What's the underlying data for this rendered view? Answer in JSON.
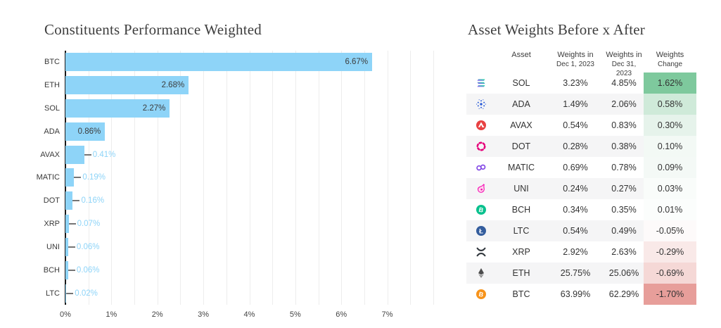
{
  "chart_data": {
    "type": "bar",
    "orientation": "horizontal",
    "title": "Constituents Performance Weighted",
    "categories": [
      "BTC",
      "ETH",
      "SOL",
      "ADA",
      "AVAX",
      "MATIC",
      "DOT",
      "XRP",
      "UNI",
      "BCH",
      "LTC"
    ],
    "values": [
      6.67,
      2.68,
      2.27,
      0.86,
      0.41,
      0.19,
      0.16,
      0.07,
      0.06,
      0.06,
      0.02
    ],
    "value_labels": [
      "6.67%",
      "2.68%",
      "2.27%",
      "0.86%",
      "0.41%",
      "0.19%",
      "0.16%",
      "0.07%",
      "0.06%",
      "0.06%",
      "0.02%"
    ],
    "xlabel": "",
    "ylabel": "",
    "xlim": [
      0,
      8
    ],
    "x_ticks": [
      "0%",
      "1%",
      "2%",
      "3%",
      "4%",
      "5%",
      "6%",
      "7%"
    ],
    "grid": "vertical minor gridlines every 0.5%",
    "legend": "none",
    "bar_color": "#8ed4f8",
    "inside_label_color": "#3c3c3c",
    "outside_label_color": "#8ed4f8"
  },
  "table": {
    "title": "Asset Weights Before x After",
    "columns": [
      {
        "line1": "Asset",
        "line2": ""
      },
      {
        "line1": "Weights in",
        "line2": "Dec 1, 2023"
      },
      {
        "line1": "Weights in",
        "line2": "Dec 31, 2023"
      },
      {
        "line1": "Weights",
        "line2": "Change"
      }
    ],
    "rows": [
      {
        "icon": "sol-icon",
        "asset": "SOL",
        "w1": "3.23%",
        "w2": "4.85%",
        "change": "1.62%",
        "change_bg": "#7ec99d"
      },
      {
        "icon": "ada-icon",
        "asset": "ADA",
        "w1": "1.49%",
        "w2": "2.06%",
        "change": "0.58%",
        "change_bg": "#cfead9"
      },
      {
        "icon": "avax-icon",
        "asset": "AVAX",
        "w1": "0.54%",
        "w2": "0.83%",
        "change": "0.30%",
        "change_bg": "#e6f3eb"
      },
      {
        "icon": "dot-icon",
        "asset": "DOT",
        "w1": "0.28%",
        "w2": "0.38%",
        "change": "0.10%",
        "change_bg": "#f3f9f5"
      },
      {
        "icon": "matic-icon",
        "asset": "MATIC",
        "w1": "0.69%",
        "w2": "0.78%",
        "change": "0.09%",
        "change_bg": "#f4f9f6"
      },
      {
        "icon": "uni-icon",
        "asset": "UNI",
        "w1": "0.24%",
        "w2": "0.27%",
        "change": "0.03%",
        "change_bg": "#f9fcfa"
      },
      {
        "icon": "bch-icon",
        "asset": "BCH",
        "w1": "0.34%",
        "w2": "0.35%",
        "change": "0.01%",
        "change_bg": "#fbfdfc"
      },
      {
        "icon": "ltc-icon",
        "asset": "LTC",
        "w1": "0.54%",
        "w2": "0.49%",
        "change": "-0.05%",
        "change_bg": "#fdfafa"
      },
      {
        "icon": "xrp-icon",
        "asset": "XRP",
        "w1": "2.92%",
        "w2": "2.63%",
        "change": "-0.29%",
        "change_bg": "#f9e9e8"
      },
      {
        "icon": "eth-icon",
        "asset": "ETH",
        "w1": "25.75%",
        "w2": "25.06%",
        "change": "-0.69%",
        "change_bg": "#f5d8d6"
      },
      {
        "icon": "btc-icon",
        "asset": "BTC",
        "w1": "63.99%",
        "w2": "62.29%",
        "change": "-1.70%",
        "change_bg": "#e79e9a"
      }
    ]
  }
}
